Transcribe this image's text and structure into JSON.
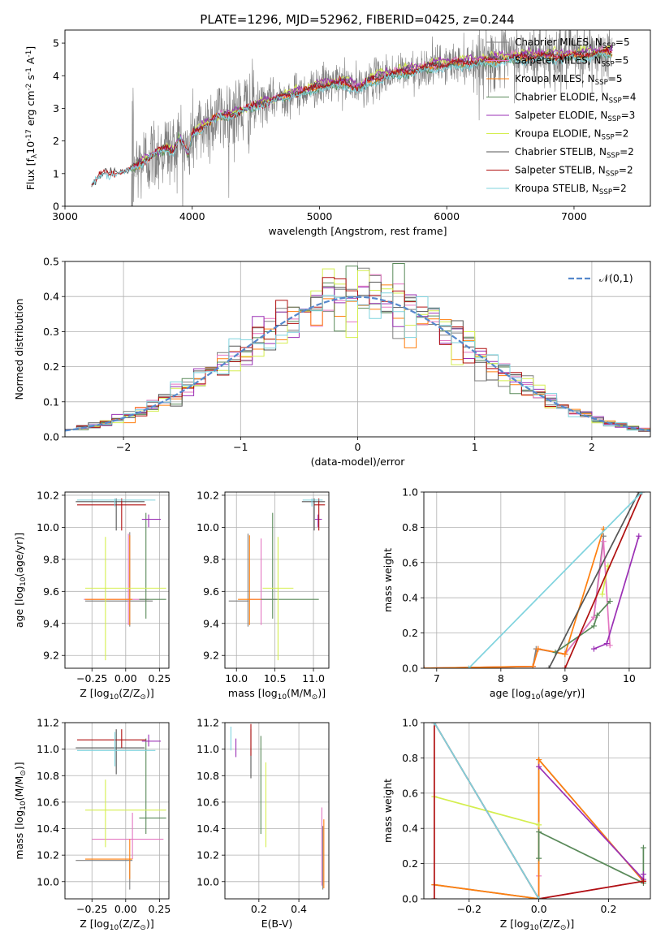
{
  "figure": {
    "title": "PLATE=1296, MJD=52962, FIBERID=0425, z=0.244"
  },
  "model_colors": [
    "#7f7f7f",
    "#e377c2",
    "#ff7f0e",
    "#5a8a5a",
    "#9b30b5",
    "#d4ee4e",
    "#555555",
    "#b01010",
    "#7fd3de"
  ],
  "chart_data": [
    {
      "id": "spectrum",
      "type": "line",
      "title": "PLATE=1296, MJD=52962, FIBERID=0425, z=0.244",
      "xlabel": "wavelength [Angstrom, rest frame]",
      "ylabel": "Flux [f$_\\lambda$10$^{-17}$ erg cm$^{-2}$ s$^{-1}$ A$^{-1}$]",
      "xlim": [
        3000,
        7600
      ],
      "ylim": [
        0,
        5.4
      ],
      "xticks": [
        3000,
        4000,
        5000,
        6000,
        7000
      ],
      "yticks": [
        0,
        1,
        2,
        3,
        4,
        5
      ],
      "grid": false,
      "legend_position": "top-right",
      "legend": [
        "Chabrier MILES, N$_{SSP}$=5",
        "Salpeter MILES, N$_{SSP}$=5",
        "Kroupa MILES, N$_{SSP}$=5",
        "Chabrier ELODIE, N$_{SSP}$=4",
        "Salpeter ELODIE, N$_{SSP}$=3",
        "Kroupa ELODIE, N$_{SSP}$=2",
        "Chabrier STELIB, N$_{SSP}$=2",
        "Salpeter STELIB, N$_{SSP}$=2",
        "Kroupa STELIB, N$_{SSP}$=2"
      ],
      "continuum_knots": {
        "x": [
          3210,
          3300,
          3400,
          3500,
          3600,
          3700,
          3800,
          3850,
          3900,
          3970,
          4000,
          4100,
          4200,
          4300,
          4400,
          4500,
          4600,
          4700,
          4800,
          4900,
          5000,
          5100,
          5200,
          5300,
          5400,
          5500,
          5700,
          5900,
          6100,
          6300,
          6500,
          6700,
          6900,
          7100,
          7300
        ],
        "y": [
          0.7,
          1.0,
          1.05,
          1.1,
          1.35,
          1.6,
          1.8,
          1.7,
          2.1,
          1.6,
          2.2,
          2.5,
          2.75,
          2.8,
          2.95,
          3.1,
          3.2,
          3.35,
          3.45,
          3.55,
          3.7,
          3.75,
          3.8,
          3.6,
          3.85,
          4.0,
          4.15,
          4.3,
          4.4,
          4.45,
          4.55,
          4.6,
          4.6,
          4.65,
          4.75
        ]
      },
      "observed_x_range": [
        3520,
        7300
      ]
    },
    {
      "id": "residuals",
      "type": "line",
      "xlabel": "(data-model)/error",
      "ylabel": "Normed distribution",
      "xlim": [
        -2.5,
        2.5
      ],
      "ylim": [
        0,
        0.5
      ],
      "xticks": [
        -2,
        -1,
        0,
        1,
        2
      ],
      "yticks": [
        0.0,
        0.1,
        0.2,
        0.3,
        0.4,
        0.5
      ],
      "grid": true,
      "legend_position": "top-right",
      "legend": [
        "$\\mathcal{N}(0,1)$"
      ],
      "normal_curve": {
        "mean": 0,
        "sigma": 1
      },
      "histograms": {
        "bins": 50,
        "range": [
          -2.5,
          2.5
        ]
      }
    },
    {
      "id": "age-vs-z",
      "type": "scatter",
      "xlabel": "Z [log$_{10}$(Z/Z$_\\odot$)]",
      "ylabel": "age  [log$_{10}$(age/yr)]",
      "xlim": [
        -0.45,
        0.32
      ],
      "ylim": [
        9.12,
        10.22
      ],
      "xticks": [
        -0.25,
        0.0,
        0.25
      ],
      "xtick_labels": [
        "−0.25",
        "0.00",
        "0.25"
      ],
      "yticks": [
        9.2,
        9.4,
        9.6,
        9.8,
        10.0,
        10.2
      ],
      "grid": true,
      "points": [
        {
          "c": 0,
          "x": 0.03,
          "y": 9.54,
          "xe": [
            0.33,
            0.17
          ],
          "ye": [
            0.16,
            0.43
          ]
        },
        {
          "c": 1,
          "x": 0.02,
          "y": 9.55,
          "xe": [
            0.33,
            0.15
          ],
          "ye": [
            0.16,
            0.41
          ]
        },
        {
          "c": 2,
          "x": 0.03,
          "y": 9.55,
          "xe": [
            0.33,
            0.02
          ],
          "ye": [
            0.16,
            0.4
          ]
        },
        {
          "c": 3,
          "x": 0.15,
          "y": 9.55,
          "xe": [
            0.05,
            0.15
          ],
          "ye": [
            0.12,
            0.54
          ]
        },
        {
          "c": 4,
          "x": 0.17,
          "y": 10.05,
          "xe": [
            0.05,
            0.09
          ],
          "ye": [
            0.05,
            0.03
          ]
        },
        {
          "c": 5,
          "x": -0.15,
          "y": 9.62,
          "xe": [
            0.15,
            0.45
          ],
          "ye": [
            0.45,
            0.32
          ]
        },
        {
          "c": 6,
          "x": -0.07,
          "y": 10.16,
          "xe": [
            0.3,
            0.21
          ],
          "ye": [
            0.18,
            0.02
          ]
        },
        {
          "c": 7,
          "x": -0.03,
          "y": 10.14,
          "xe": [
            0.33,
            0.18
          ],
          "ye": [
            0.16,
            0.04
          ]
        },
        {
          "c": 8,
          "x": -0.08,
          "y": 10.17,
          "xe": [
            0.28,
            0.3
          ],
          "ye": [
            0.04,
            0.01
          ]
        }
      ]
    },
    {
      "id": "age-vs-mass",
      "type": "scatter",
      "xlabel": "mass [log$_{10}$(M/M$_\\odot$)]",
      "ylabel": "",
      "xlim": [
        9.85,
        11.2
      ],
      "ylim": [
        9.12,
        10.22
      ],
      "xticks": [
        10.0,
        10.5,
        11.0
      ],
      "yticks": [
        9.2,
        9.4,
        9.6,
        9.8,
        10.0,
        10.2
      ],
      "grid": true,
      "points": [
        {
          "c": 0,
          "x": 10.15,
          "y": 9.54,
          "xe": [
            0.25,
            0.01
          ],
          "ye": [
            0.16,
            0.42
          ]
        },
        {
          "c": 1,
          "x": 10.32,
          "y": 9.55,
          "xe": [
            0.15,
            0.2
          ],
          "ye": [
            0.16,
            0.38
          ]
        },
        {
          "c": 2,
          "x": 10.17,
          "y": 9.55,
          "xe": [
            0.15,
            0.15
          ],
          "ye": [
            0.16,
            0.4
          ]
        },
        {
          "c": 3,
          "x": 10.47,
          "y": 9.55,
          "xe": [
            0.15,
            0.6
          ],
          "ye": [
            0.12,
            0.54
          ]
        },
        {
          "c": 4,
          "x": 11.06,
          "y": 10.05,
          "xe": [
            0.04,
            0.05
          ],
          "ye": [
            0.05,
            0.03
          ]
        },
        {
          "c": 5,
          "x": 10.54,
          "y": 9.62,
          "xe": [
            0.2,
            0.2
          ],
          "ye": [
            0.45,
            0.32
          ]
        },
        {
          "c": 6,
          "x": 11.01,
          "y": 10.16,
          "xe": [
            0.16,
            0.14
          ],
          "ye": [
            0.18,
            0.02
          ]
        },
        {
          "c": 7,
          "x": 11.07,
          "y": 10.14,
          "xe": [
            0.06,
            0.08
          ],
          "ye": [
            0.16,
            0.04
          ]
        },
        {
          "c": 8,
          "x": 10.98,
          "y": 10.17,
          "xe": [
            0.12,
            0.14
          ],
          "ye": [
            0.04,
            0.01
          ]
        }
      ]
    },
    {
      "id": "weights-vs-age",
      "type": "line",
      "xlabel": "age  [log$_{10}$(age/yr)]",
      "ylabel": "mass weight",
      "xlim": [
        6.8,
        10.33
      ],
      "ylim": [
        0,
        1.0
      ],
      "xticks": [
        7,
        8,
        9,
        10
      ],
      "yticks": [
        0.0,
        0.2,
        0.4,
        0.6,
        0.8,
        1.0
      ],
      "grid": true,
      "series": [
        {
          "c": 0,
          "x": [
            6.8,
            8.5,
            8.55,
            9.0,
            9.45,
            9.6
          ],
          "y": [
            0.0,
            0.01,
            0.11,
            0.08,
            0.29,
            0.75
          ]
        },
        {
          "c": 1,
          "x": [
            6.8,
            8.5,
            8.58,
            9.0,
            9.45,
            9.6,
            9.7
          ],
          "y": [
            0.0,
            0.01,
            0.11,
            0.08,
            0.29,
            0.72,
            0.13
          ]
        },
        {
          "c": 2,
          "x": [
            6.8,
            8.5,
            8.58,
            9.0,
            9.6
          ],
          "y": [
            0.0,
            0.01,
            0.11,
            0.08,
            0.79
          ]
        },
        {
          "c": 3,
          "x": [
            8.85,
            9.45,
            9.5,
            9.7
          ],
          "y": [
            0.09,
            0.24,
            0.3,
            0.38
          ]
        },
        {
          "c": 4,
          "x": [
            9.45,
            9.65,
            10.15
          ],
          "y": [
            0.11,
            0.14,
            0.75
          ]
        },
        {
          "c": 5,
          "x": [
            9.58,
            9.67
          ],
          "y": [
            0.42,
            0.58
          ]
        },
        {
          "c": 6,
          "x": [
            8.75,
            10.15
          ],
          "y": [
            0.0,
            1.0
          ]
        },
        {
          "c": 7,
          "x": [
            9.0,
            10.2
          ],
          "y": [
            0.0,
            1.0
          ]
        },
        {
          "c": 8,
          "x": [
            7.5,
            10.2
          ],
          "y": [
            0.0,
            1.0
          ]
        }
      ]
    },
    {
      "id": "mass-vs-z",
      "type": "scatter",
      "xlabel": "Z [log$_{10}$(Z/Z$_\\odot$)]",
      "ylabel": "mass [log$_{10}$(M/M$_\\odot$)]",
      "xlim": [
        -0.45,
        0.32
      ],
      "ylim": [
        9.87,
        11.2
      ],
      "xticks": [
        -0.25,
        0.0,
        0.25
      ],
      "xtick_labels": [
        "−0.25",
        "0.00",
        "0.25"
      ],
      "yticks": [
        10.0,
        10.2,
        10.4,
        10.6,
        10.8,
        11.0,
        11.2
      ],
      "grid": true,
      "points": [
        {
          "c": 0,
          "x": 0.03,
          "y": 10.16,
          "xe": [
            0.4,
            0.02
          ],
          "ye": [
            0.22,
            0.01
          ]
        },
        {
          "c": 1,
          "x": 0.05,
          "y": 10.32,
          "xe": [
            0.3,
            0.23
          ],
          "ye": [
            0.15,
            0.2
          ]
        },
        {
          "c": 2,
          "x": 0.03,
          "y": 10.17,
          "xe": [
            0.33,
            0.02
          ],
          "ye": [
            0.15,
            0.15
          ]
        },
        {
          "c": 3,
          "x": 0.15,
          "y": 10.48,
          "xe": [
            0.05,
            0.15
          ],
          "ye": [
            0.12,
            0.6
          ]
        },
        {
          "c": 4,
          "x": 0.17,
          "y": 11.06,
          "xe": [
            0.05,
            0.09
          ],
          "ye": [
            0.04,
            0.05
          ]
        },
        {
          "c": 5,
          "x": -0.15,
          "y": 10.54,
          "xe": [
            0.15,
            0.45
          ],
          "ye": [
            0.28,
            0.23
          ]
        },
        {
          "c": 6,
          "x": -0.07,
          "y": 11.01,
          "xe": [
            0.3,
            0.21
          ],
          "ye": [
            0.2,
            0.14
          ]
        },
        {
          "c": 7,
          "x": -0.03,
          "y": 11.07,
          "xe": [
            0.33,
            0.18
          ],
          "ye": [
            0.06,
            0.08
          ]
        },
        {
          "c": 8,
          "x": -0.08,
          "y": 10.99,
          "xe": [
            0.28,
            0.3
          ],
          "ye": [
            0.12,
            0.14
          ]
        }
      ]
    },
    {
      "id": "mass-vs-ebv",
      "type": "scatter",
      "xlabel": "E(B-V)",
      "ylabel": "",
      "xlim": [
        0.03,
        0.55
      ],
      "ylim": [
        9.87,
        11.2
      ],
      "xticks": [
        0.2,
        0.4
      ],
      "yticks": [
        10.0,
        10.2,
        10.4,
        10.6,
        10.8,
        11.0,
        11.2
      ],
      "grid": true,
      "points": [
        {
          "c": 0,
          "x": 0.52,
          "y": 10.16,
          "xe": [
            0,
            0
          ],
          "ye": [
            0.22,
            0.26
          ]
        },
        {
          "c": 1,
          "x": 0.515,
          "y": 10.32,
          "xe": [
            0,
            0
          ],
          "ye": [
            0.35,
            0.24
          ]
        },
        {
          "c": 2,
          "x": 0.525,
          "y": 10.17,
          "xe": [
            0,
            0
          ],
          "ye": [
            0.22,
            0.3
          ]
        },
        {
          "c": 3,
          "x": 0.21,
          "y": 10.48,
          "xe": [
            0,
            0
          ],
          "ye": [
            0.12,
            0.62
          ]
        },
        {
          "c": 4,
          "x": 0.085,
          "y": 11.0,
          "xe": [
            0,
            0
          ],
          "ye": [
            0.06,
            0.08
          ]
        },
        {
          "c": 5,
          "x": 0.235,
          "y": 10.55,
          "xe": [
            0,
            0
          ],
          "ye": [
            0.29,
            0.35
          ]
        },
        {
          "c": 6,
          "x": 0.16,
          "y": 10.9,
          "xe": [
            0,
            0
          ],
          "ye": [
            0.12,
            0.25
          ]
        },
        {
          "c": 7,
          "x": 0.16,
          "y": 11.05,
          "xe": [
            0,
            0
          ],
          "ye": [
            0.1,
            0.14
          ]
        },
        {
          "c": 8,
          "x": 0.06,
          "y": 11.05,
          "xe": [
            0,
            0
          ],
          "ye": [
            0.06,
            0.12
          ]
        }
      ]
    },
    {
      "id": "weights-vs-z",
      "type": "line",
      "xlabel": "Z [log$_{10}$(Z/Z$_\\odot$)]",
      "ylabel": "mass weight",
      "xlim": [
        -0.33,
        0.32
      ],
      "ylim": [
        0,
        1.0
      ],
      "xticks": [
        -0.2,
        0.0,
        0.2
      ],
      "xtick_labels": [
        "−0.2",
        "0.0",
        "0.2"
      ],
      "yticks": [
        0.0,
        0.2,
        0.4,
        0.6,
        0.8,
        1.0
      ],
      "grid": true,
      "series": [
        {
          "c": 0,
          "x": [
            -0.3,
            0.0,
            0.0,
            0.3
          ],
          "y": [
            0.08,
            0.0,
            0.79,
            0.1
          ]
        },
        {
          "c": 1,
          "x": [
            0.0,
            0.0,
            0.3
          ],
          "y": [
            0.13,
            0.0,
            0.1
          ]
        },
        {
          "c": 2,
          "x": [
            -0.3,
            0.0,
            0.0,
            0.3
          ],
          "y": [
            0.08,
            0.0,
            0.79,
            0.1
          ]
        },
        {
          "c": 3,
          "x": [
            0.0,
            0.0,
            0.3,
            0.3
          ],
          "y": [
            0.23,
            0.38,
            0.09,
            0.29
          ]
        },
        {
          "c": 4,
          "x": [
            0.0,
            0.3,
            0.3
          ],
          "y": [
            0.75,
            0.11,
            0.14
          ]
        },
        {
          "c": 5,
          "x": [
            -0.3,
            0.0
          ],
          "y": [
            0.58,
            0.42
          ]
        },
        {
          "c": 6,
          "x": [
            -0.3,
            0.0
          ],
          "y": [
            1.0,
            0.0
          ]
        },
        {
          "c": 7,
          "x": [
            -0.3,
            -0.3,
            0.0,
            0.3
          ],
          "y": [
            0.0,
            1.0,
            0.0,
            0.1
          ]
        },
        {
          "c": 8,
          "x": [
            -0.3,
            0.0
          ],
          "y": [
            1.0,
            0.0
          ]
        }
      ]
    }
  ]
}
